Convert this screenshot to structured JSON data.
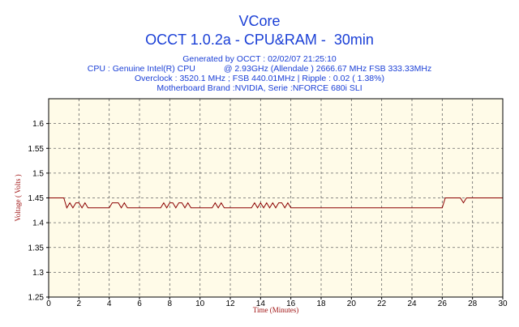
{
  "header": {
    "title": "VCore",
    "subtitle": "OCCT 1.0.2a - CPU&RAM -  30min",
    "generated": "Generated by OCCT : 02/02/07 21:25:10",
    "cpu": "CPU : Genuine Intel(R) CPU            @ 2.93GHz (Allendale ) 2666.67 MHz FSB 333.33MHz",
    "overclock": "Overclock : 3520.1 MHz ; FSB 440.01MHz | Ripple : 0.02 ( 1.38%)",
    "motherboard": "Motherboard Brand :NVIDIA, Serie :NFORCE 680i SLI"
  },
  "colors": {
    "title": "#1a3fd6",
    "plot_background": "#fffbe8",
    "line": "#8b0000",
    "axis_label": "#a01414",
    "grid": "#666666"
  },
  "chart_data": {
    "type": "line",
    "xlabel": "Time (Minutes)",
    "ylabel": "Voltage ( Volts )",
    "xlim": [
      0,
      30
    ],
    "ylim": [
      1.25,
      1.65
    ],
    "x_ticks": [
      "0",
      "2",
      "4",
      "6",
      "8",
      "10",
      "12",
      "14",
      "16",
      "18",
      "20",
      "22",
      "24",
      "26",
      "28",
      "30"
    ],
    "y_ticks": [
      "1.25",
      "1.3",
      "1.35",
      "1.4",
      "1.45",
      "1.5",
      "1.55",
      "1.6"
    ],
    "grid": true,
    "series": [
      {
        "x": [
          0,
          1.0,
          1.1,
          1.2,
          1.4,
          1.6,
          1.8,
          2.0,
          2.2,
          2.4,
          2.6,
          2.8,
          3.0,
          3.2,
          3.4,
          3.6,
          3.8,
          4.0,
          4.2,
          4.4,
          4.6,
          4.8,
          5.0,
          5.2,
          5.4,
          5.6,
          5.8,
          6.0,
          6.2,
          6.4,
          6.6,
          6.8,
          7.0,
          7.2,
          7.4,
          7.6,
          7.8,
          8.0,
          8.2,
          8.4,
          8.6,
          8.8,
          9.0,
          9.2,
          9.4,
          9.6,
          9.8,
          10.0,
          10.2,
          10.4,
          10.6,
          10.8,
          11.0,
          11.2,
          11.4,
          11.6,
          11.8,
          12.0,
          12.2,
          12.4,
          12.6,
          12.8,
          13.0,
          13.2,
          13.4,
          13.6,
          13.8,
          14.0,
          14.2,
          14.4,
          14.6,
          14.8,
          15.0,
          15.2,
          15.4,
          15.6,
          15.8,
          16.0,
          16.2,
          26.0,
          26.2,
          27.0,
          27.2,
          27.4,
          27.6,
          28.0,
          30.0
        ],
        "y": [
          1.45,
          1.45,
          1.44,
          1.43,
          1.44,
          1.43,
          1.44,
          1.44,
          1.43,
          1.44,
          1.43,
          1.43,
          1.43,
          1.43,
          1.43,
          1.43,
          1.43,
          1.43,
          1.44,
          1.44,
          1.44,
          1.43,
          1.44,
          1.43,
          1.43,
          1.43,
          1.43,
          1.43,
          1.43,
          1.43,
          1.43,
          1.43,
          1.43,
          1.43,
          1.43,
          1.44,
          1.43,
          1.44,
          1.44,
          1.43,
          1.44,
          1.44,
          1.43,
          1.44,
          1.43,
          1.43,
          1.43,
          1.43,
          1.43,
          1.43,
          1.43,
          1.43,
          1.44,
          1.43,
          1.44,
          1.43,
          1.43,
          1.43,
          1.43,
          1.43,
          1.43,
          1.43,
          1.43,
          1.43,
          1.43,
          1.44,
          1.43,
          1.44,
          1.43,
          1.44,
          1.43,
          1.44,
          1.43,
          1.44,
          1.44,
          1.43,
          1.44,
          1.43,
          1.43,
          1.43,
          1.45,
          1.45,
          1.45,
          1.44,
          1.45,
          1.45,
          1.45
        ]
      }
    ]
  }
}
